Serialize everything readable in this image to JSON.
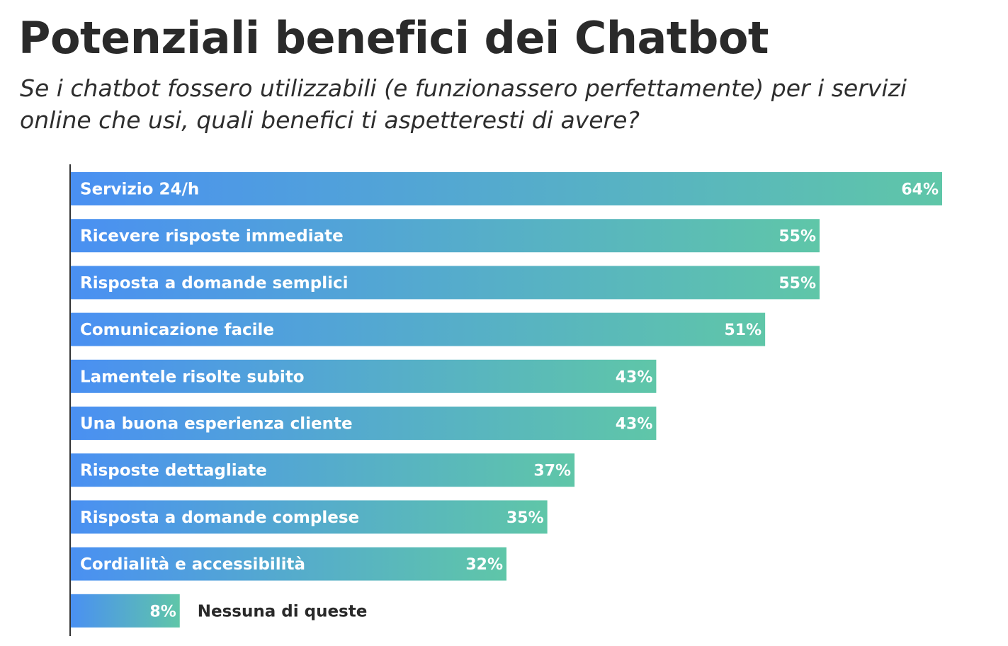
{
  "chart_data": {
    "type": "bar",
    "orientation": "horizontal",
    "title": "Potenziali benefici dei Chatbot",
    "subtitle": "Se i chatbot fossero utilizzabili (e funzionassero perfettamente) per i servizi online che usi, quali benefici ti aspetteresti di avere?",
    "categories": [
      "Servizio 24/h",
      "Ricevere risposte immediate",
      "Risposta a domande semplici",
      "Comunicazione facile",
      "Lamentele risolte subito",
      "Una buona esperienza cliente",
      "Risposte dettagliate",
      "Risposta a domande complese",
      "Cordialità e accessibilità",
      "Nessuna di queste"
    ],
    "values": [
      64,
      55,
      55,
      51,
      43,
      43,
      37,
      35,
      32,
      8
    ],
    "value_labels": [
      "64%",
      "55%",
      "55%",
      "51%",
      "43%",
      "43%",
      "37%",
      "35%",
      "32%",
      "8%"
    ],
    "unit": "%",
    "xlim": [
      0,
      64
    ],
    "grid": false,
    "legend": "none",
    "colors": {
      "gradient_start": "#4a90f2",
      "gradient_end": "#5fc6a8",
      "axis": "#333333"
    }
  }
}
